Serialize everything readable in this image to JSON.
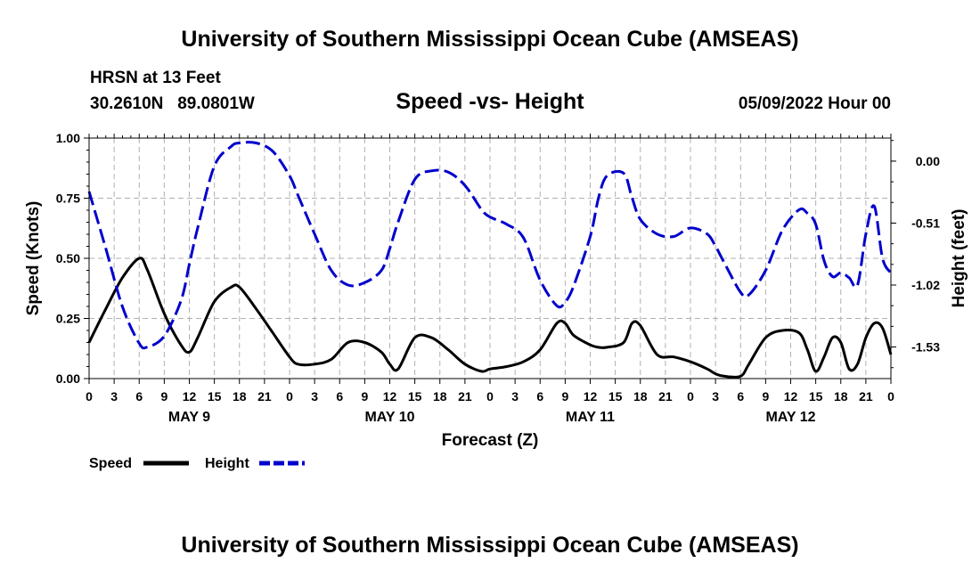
{
  "header": {
    "title": "University of Southern Mississippi Ocean Cube (AMSEAS)",
    "station": "HRSN at 13 Feet",
    "coords": "30.2610N   89.0801W",
    "subtitle": "Speed -vs- Height",
    "datetime": "05/09/2022 Hour 00"
  },
  "footer": {
    "title": "University of Southern Mississippi Ocean Cube (AMSEAS)"
  },
  "colors": {
    "speed": "#000000",
    "height": "#0000cc",
    "grid": "#b0b0b0"
  },
  "chart_data": {
    "type": "line",
    "title": "Speed -vs- Height",
    "xlabel": "Forecast (Z)",
    "ylabel_left": "Speed (Knots)",
    "ylabel_right": "Height (feet)",
    "xlim": [
      0,
      96
    ],
    "ylim_left": [
      0,
      1.0
    ],
    "ylim_right": [
      -1.79,
      0.19
    ],
    "x_tick_values": [
      0,
      3,
      6,
      9,
      12,
      15,
      18,
      21,
      24,
      27,
      30,
      33,
      36,
      39,
      42,
      45,
      48,
      51,
      54,
      57,
      60,
      63,
      66,
      69,
      72,
      75,
      78,
      81,
      84,
      87,
      90,
      93,
      96
    ],
    "x_tick_labels": [
      "0",
      "3",
      "6",
      "9",
      "12",
      "15",
      "18",
      "21",
      "0",
      "3",
      "6",
      "9",
      "12",
      "15",
      "18",
      "21",
      "0",
      "3",
      "6",
      "9",
      "12",
      "15",
      "18",
      "21",
      "0",
      "3",
      "6",
      "9",
      "12",
      "15",
      "18",
      "21",
      "0"
    ],
    "day_labels": [
      {
        "x": 12,
        "label": "MAY 9"
      },
      {
        "x": 36,
        "label": "MAY 10"
      },
      {
        "x": 60,
        "label": "MAY 11"
      },
      {
        "x": 84,
        "label": "MAY 12"
      }
    ],
    "y_left_ticks": [
      {
        "value": 0.0,
        "label": "0.00"
      },
      {
        "value": 0.25,
        "label": "0.25"
      },
      {
        "value": 0.5,
        "label": "0.50"
      },
      {
        "value": 0.75,
        "label": "0.75"
      },
      {
        "value": 1.0,
        "label": "1.00"
      }
    ],
    "y_right_ticks": [
      {
        "value": 0.0,
        "label": "0.00"
      },
      {
        "value": -0.51,
        "label": "-0.51"
      },
      {
        "value": -1.02,
        "label": "-1.02"
      },
      {
        "value": -1.53,
        "label": "-1.53"
      }
    ],
    "legend": [
      {
        "name": "Speed",
        "style": "solid",
        "color": "#000000"
      },
      {
        "name": "Height",
        "style": "dashed",
        "color": "#0000cc"
      }
    ],
    "series": [
      {
        "name": "Speed",
        "axis": "left",
        "x": [
          0,
          2,
          4,
          6,
          7,
          9,
          11,
          12,
          13,
          15,
          17,
          18,
          20,
          22,
          24,
          25,
          27,
          29,
          31,
          33,
          35,
          36,
          37,
          39,
          41,
          43,
          45,
          47,
          48,
          50,
          52,
          54,
          56,
          57,
          58,
          60,
          61,
          62,
          64,
          65,
          66,
          68,
          70,
          72,
          74,
          75,
          76,
          78,
          79,
          81,
          83,
          85,
          86,
          87,
          88,
          89,
          90,
          91,
          92,
          93,
          94,
          95,
          96
        ],
        "values": [
          0.15,
          0.29,
          0.42,
          0.5,
          0.45,
          0.27,
          0.14,
          0.11,
          0.17,
          0.32,
          0.38,
          0.38,
          0.29,
          0.19,
          0.09,
          0.06,
          0.06,
          0.08,
          0.15,
          0.15,
          0.11,
          0.06,
          0.04,
          0.17,
          0.17,
          0.12,
          0.06,
          0.03,
          0.04,
          0.05,
          0.07,
          0.12,
          0.23,
          0.23,
          0.18,
          0.14,
          0.13,
          0.13,
          0.15,
          0.23,
          0.22,
          0.1,
          0.09,
          0.07,
          0.04,
          0.02,
          0.01,
          0.01,
          0.06,
          0.17,
          0.2,
          0.19,
          0.12,
          0.03,
          0.09,
          0.17,
          0.15,
          0.04,
          0.06,
          0.17,
          0.23,
          0.21,
          0.1
        ]
      },
      {
        "name": "Height",
        "axis": "right",
        "x": [
          0,
          2,
          4,
          6,
          7,
          9,
          11,
          12,
          13,
          15,
          17,
          18,
          20,
          22,
          24,
          25,
          27,
          29,
          31,
          33,
          35,
          36,
          37,
          39,
          41,
          43,
          45,
          47,
          48,
          50,
          52,
          54,
          56,
          57,
          58,
          60,
          61,
          62,
          64,
          65,
          66,
          68,
          70,
          72,
          74,
          75,
          76,
          78,
          79,
          81,
          83,
          85,
          86,
          87,
          88,
          89,
          90,
          91,
          92,
          93,
          94,
          95,
          96
        ],
        "values": [
          -0.25,
          -0.72,
          -1.2,
          -1.5,
          -1.53,
          -1.44,
          -1.15,
          -0.85,
          -0.55,
          -0.04,
          0.12,
          0.15,
          0.15,
          0.08,
          -0.12,
          -0.28,
          -0.6,
          -0.9,
          -1.02,
          -1.0,
          -0.9,
          -0.72,
          -0.5,
          -0.15,
          -0.08,
          -0.09,
          -0.2,
          -0.4,
          -0.46,
          -0.52,
          -0.63,
          -0.98,
          -1.19,
          -1.16,
          -1.03,
          -0.62,
          -0.3,
          -0.12,
          -0.1,
          -0.3,
          -0.48,
          -0.6,
          -0.62,
          -0.55,
          -0.6,
          -0.7,
          -0.83,
          -1.08,
          -1.1,
          -0.9,
          -0.57,
          -0.4,
          -0.43,
          -0.52,
          -0.82,
          -0.95,
          -0.92,
          -0.96,
          -1.02,
          -0.6,
          -0.37,
          -0.8,
          -0.92
        ]
      }
    ]
  }
}
